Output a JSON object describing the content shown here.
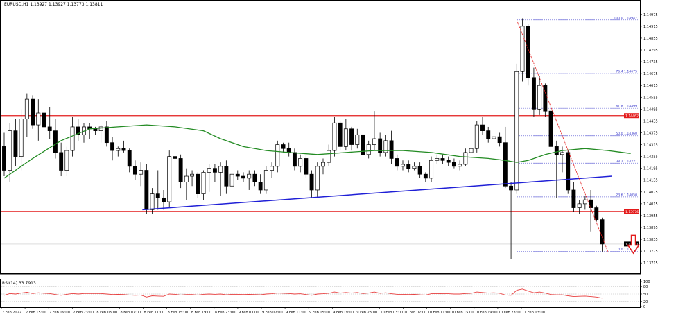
{
  "chart_data": {
    "type": "candlestick",
    "symbol_header": "EURUSD,H1  1.13927 1.13927 1.13773 1.13811",
    "price_axis": {
      "range": [
        1.1367,
        1.1502
      ],
      "ticks": [
        "1.14975",
        "1.14915",
        "1.14855",
        "1.14795",
        "1.14735",
        "1.14675",
        "1.14615",
        "1.14555",
        "1.14495",
        "1.14435",
        "1.14375",
        "1.14315",
        "1.14255",
        "1.14195",
        "1.14135",
        "1.14075",
        "1.14015",
        "1.13955",
        "1.13895",
        "1.13835",
        "1.13775",
        "1.13715"
      ],
      "current_price_label": "1.13811",
      "current_price": 1.13811
    },
    "time_axis": {
      "labels": [
        "7 Feb 2022",
        "7 Feb 15:00",
        "7 Feb 19:00",
        "7 Feb 23:00",
        "8 Feb 03:00",
        "8 Feb 07:00",
        "8 Feb 11:00",
        "8 Feb 15:00",
        "8 Feb 19:00",
        "8 Feb 23:00",
        "9 Feb 03:00",
        "9 Feb 07:00",
        "9 Feb 11:00",
        "9 Feb 15:00",
        "9 Feb 19:00",
        "9 Feb 23:00",
        "10 Feb 03:00",
        "10 Feb 07:00",
        "10 Feb 11:00",
        "10 Feb 15:00",
        "10 Feb 19:00",
        "10 Feb 23:00",
        "11 Feb 03:00"
      ]
    },
    "candles": [
      {
        "o": 1.14305,
        "h": 1.14375,
        "l": 1.14155,
        "c": 1.14185
      },
      {
        "o": 1.14185,
        "h": 1.14425,
        "l": 1.14125,
        "c": 1.14385
      },
      {
        "o": 1.14385,
        "h": 1.14445,
        "l": 1.14205,
        "c": 1.14255
      },
      {
        "o": 1.14255,
        "h": 1.14495,
        "l": 1.14185,
        "c": 1.14445
      },
      {
        "o": 1.14445,
        "h": 1.14575,
        "l": 1.14355,
        "c": 1.14545
      },
      {
        "o": 1.14545,
        "h": 1.14565,
        "l": 1.14395,
        "c": 1.14415
      },
      {
        "o": 1.14415,
        "h": 1.14545,
        "l": 1.14335,
        "c": 1.14475
      },
      {
        "o": 1.14475,
        "h": 1.14545,
        "l": 1.14385,
        "c": 1.14405
      },
      {
        "o": 1.14405,
        "h": 1.14505,
        "l": 1.14345,
        "c": 1.14385
      },
      {
        "o": 1.14385,
        "h": 1.14445,
        "l": 1.14245,
        "c": 1.14275
      },
      {
        "o": 1.14275,
        "h": 1.14325,
        "l": 1.14155,
        "c": 1.14185
      },
      {
        "o": 1.14185,
        "h": 1.14305,
        "l": 1.14155,
        "c": 1.14285
      },
      {
        "o": 1.14285,
        "h": 1.14455,
        "l": 1.14255,
        "c": 1.14405
      },
      {
        "o": 1.14405,
        "h": 1.14445,
        "l": 1.14335,
        "c": 1.14365
      },
      {
        "o": 1.14365,
        "h": 1.14425,
        "l": 1.14325,
        "c": 1.14405
      },
      {
        "o": 1.14405,
        "h": 1.14425,
        "l": 1.14345,
        "c": 1.14395
      },
      {
        "o": 1.14395,
        "h": 1.14405,
        "l": 1.14365,
        "c": 1.14385
      },
      {
        "o": 1.14385,
        "h": 1.14415,
        "l": 1.14325,
        "c": 1.14405
      },
      {
        "o": 1.14405,
        "h": 1.14435,
        "l": 1.14305,
        "c": 1.14325
      },
      {
        "o": 1.14325,
        "h": 1.14355,
        "l": 1.14235,
        "c": 1.14285
      },
      {
        "o": 1.14285,
        "h": 1.14305,
        "l": 1.14255,
        "c": 1.14295
      },
      {
        "o": 1.14295,
        "h": 1.14335,
        "l": 1.14275,
        "c": 1.14285
      },
      {
        "o": 1.14285,
        "h": 1.14295,
        "l": 1.14175,
        "c": 1.14205
      },
      {
        "o": 1.14205,
        "h": 1.14235,
        "l": 1.14135,
        "c": 1.14165
      },
      {
        "o": 1.14165,
        "h": 1.14225,
        "l": 1.14105,
        "c": 1.14185
      },
      {
        "o": 1.14185,
        "h": 1.14215,
        "l": 1.13965,
        "c": 1.13985
      },
      {
        "o": 1.13985,
        "h": 1.14095,
        "l": 1.13965,
        "c": 1.14065
      },
      {
        "o": 1.14065,
        "h": 1.14185,
        "l": 1.13985,
        "c": 1.14045
      },
      {
        "o": 1.14045,
        "h": 1.14085,
        "l": 1.13985,
        "c": 1.14025
      },
      {
        "o": 1.14025,
        "h": 1.14285,
        "l": 1.13995,
        "c": 1.14255
      },
      {
        "o": 1.14255,
        "h": 1.14275,
        "l": 1.14185,
        "c": 1.14245
      },
      {
        "o": 1.14245,
        "h": 1.14265,
        "l": 1.14095,
        "c": 1.14125
      },
      {
        "o": 1.14125,
        "h": 1.14195,
        "l": 1.14035,
        "c": 1.14155
      },
      {
        "o": 1.14155,
        "h": 1.14185,
        "l": 1.14105,
        "c": 1.14165
      },
      {
        "o": 1.14165,
        "h": 1.14175,
        "l": 1.14045,
        "c": 1.14065
      },
      {
        "o": 1.14065,
        "h": 1.14185,
        "l": 1.14035,
        "c": 1.14175
      },
      {
        "o": 1.14175,
        "h": 1.14215,
        "l": 1.14075,
        "c": 1.14195
      },
      {
        "o": 1.14195,
        "h": 1.14215,
        "l": 1.14125,
        "c": 1.14175
      },
      {
        "o": 1.14175,
        "h": 1.14225,
        "l": 1.14055,
        "c": 1.14205
      },
      {
        "o": 1.14205,
        "h": 1.14235,
        "l": 1.14065,
        "c": 1.14105
      },
      {
        "o": 1.14105,
        "h": 1.14195,
        "l": 1.14075,
        "c": 1.14165
      },
      {
        "o": 1.14165,
        "h": 1.14185,
        "l": 1.14135,
        "c": 1.14155
      },
      {
        "o": 1.14155,
        "h": 1.14175,
        "l": 1.14125,
        "c": 1.14145
      },
      {
        "o": 1.14145,
        "h": 1.14185,
        "l": 1.14085,
        "c": 1.14165
      },
      {
        "o": 1.14165,
        "h": 1.14185,
        "l": 1.14105,
        "c": 1.14125
      },
      {
        "o": 1.14125,
        "h": 1.14165,
        "l": 1.14065,
        "c": 1.14085
      },
      {
        "o": 1.14085,
        "h": 1.14205,
        "l": 1.14065,
        "c": 1.14185
      },
      {
        "o": 1.14185,
        "h": 1.14225,
        "l": 1.14145,
        "c": 1.14205
      },
      {
        "o": 1.14205,
        "h": 1.14335,
        "l": 1.14175,
        "c": 1.14315
      },
      {
        "o": 1.14315,
        "h": 1.14325,
        "l": 1.14275,
        "c": 1.14295
      },
      {
        "o": 1.14295,
        "h": 1.14325,
        "l": 1.14255,
        "c": 1.14275
      },
      {
        "o": 1.14275,
        "h": 1.14295,
        "l": 1.14185,
        "c": 1.14205
      },
      {
        "o": 1.14205,
        "h": 1.14265,
        "l": 1.14175,
        "c": 1.14245
      },
      {
        "o": 1.14245,
        "h": 1.14265,
        "l": 1.14145,
        "c": 1.14165
      },
      {
        "o": 1.14165,
        "h": 1.14185,
        "l": 1.14045,
        "c": 1.14085
      },
      {
        "o": 1.14085,
        "h": 1.14225,
        "l": 1.14045,
        "c": 1.14205
      },
      {
        "o": 1.14205,
        "h": 1.14245,
        "l": 1.14165,
        "c": 1.14225
      },
      {
        "o": 1.14225,
        "h": 1.14315,
        "l": 1.14205,
        "c": 1.14285
      },
      {
        "o": 1.14285,
        "h": 1.14455,
        "l": 1.14255,
        "c": 1.14425
      },
      {
        "o": 1.14425,
        "h": 1.14435,
        "l": 1.14285,
        "c": 1.14305
      },
      {
        "o": 1.14305,
        "h": 1.14445,
        "l": 1.14285,
        "c": 1.14395
      },
      {
        "o": 1.14395,
        "h": 1.14405,
        "l": 1.14285,
        "c": 1.14315
      },
      {
        "o": 1.14315,
        "h": 1.14395,
        "l": 1.14295,
        "c": 1.14365
      },
      {
        "o": 1.14365,
        "h": 1.14385,
        "l": 1.14245,
        "c": 1.14265
      },
      {
        "o": 1.14265,
        "h": 1.14335,
        "l": 1.14245,
        "c": 1.14315
      },
      {
        "o": 1.14315,
        "h": 1.14485,
        "l": 1.14285,
        "c": 1.14345
      },
      {
        "o": 1.14345,
        "h": 1.14375,
        "l": 1.14255,
        "c": 1.14275
      },
      {
        "o": 1.14275,
        "h": 1.14365,
        "l": 1.14255,
        "c": 1.14335
      },
      {
        "o": 1.14335,
        "h": 1.14385,
        "l": 1.14215,
        "c": 1.14245
      },
      {
        "o": 1.14245,
        "h": 1.14265,
        "l": 1.14185,
        "c": 1.14205
      },
      {
        "o": 1.14205,
        "h": 1.14235,
        "l": 1.14185,
        "c": 1.14215
      },
      {
        "o": 1.14215,
        "h": 1.14235,
        "l": 1.14175,
        "c": 1.14195
      },
      {
        "o": 1.14195,
        "h": 1.14225,
        "l": 1.14185,
        "c": 1.14205
      },
      {
        "o": 1.14205,
        "h": 1.14225,
        "l": 1.14145,
        "c": 1.14165
      },
      {
        "o": 1.14165,
        "h": 1.14175,
        "l": 1.14125,
        "c": 1.14145
      },
      {
        "o": 1.14145,
        "h": 1.14255,
        "l": 1.14125,
        "c": 1.14235
      },
      {
        "o": 1.14235,
        "h": 1.14265,
        "l": 1.14215,
        "c": 1.14245
      },
      {
        "o": 1.14245,
        "h": 1.14265,
        "l": 1.14215,
        "c": 1.14235
      },
      {
        "o": 1.14235,
        "h": 1.14255,
        "l": 1.14205,
        "c": 1.14225
      },
      {
        "o": 1.14225,
        "h": 1.14245,
        "l": 1.14195,
        "c": 1.14205
      },
      {
        "o": 1.14205,
        "h": 1.14235,
        "l": 1.14185,
        "c": 1.14215
      },
      {
        "o": 1.14215,
        "h": 1.14295,
        "l": 1.14205,
        "c": 1.14275
      },
      {
        "o": 1.14275,
        "h": 1.14315,
        "l": 1.14255,
        "c": 1.14295
      },
      {
        "o": 1.14295,
        "h": 1.14435,
        "l": 1.14275,
        "c": 1.14415
      },
      {
        "o": 1.14415,
        "h": 1.14455,
        "l": 1.14365,
        "c": 1.14385
      },
      {
        "o": 1.14385,
        "h": 1.14405,
        "l": 1.14325,
        "c": 1.14345
      },
      {
        "o": 1.14345,
        "h": 1.14385,
        "l": 1.14315,
        "c": 1.14355
      },
      {
        "o": 1.14355,
        "h": 1.14375,
        "l": 1.14305,
        "c": 1.14325
      },
      {
        "o": 1.14325,
        "h": 1.14405,
        "l": 1.14095,
        "c": 1.14105
      },
      {
        "o": 1.14105,
        "h": 1.14125,
        "l": 1.13735,
        "c": 1.14085
      },
      {
        "o": 1.14085,
        "h": 1.14725,
        "l": 1.14065,
        "c": 1.14685
      },
      {
        "o": 1.14685,
        "h": 1.14955,
        "l": 1.14635,
        "c": 1.14915
      },
      {
        "o": 1.14915,
        "h": 1.14925,
        "l": 1.14615,
        "c": 1.14655
      },
      {
        "o": 1.14655,
        "h": 1.14705,
        "l": 1.14455,
        "c": 1.14495
      },
      {
        "o": 1.14495,
        "h": 1.14665,
        "l": 1.14465,
        "c": 1.14615
      },
      {
        "o": 1.14615,
        "h": 1.14625,
        "l": 1.14455,
        "c": 1.14485
      },
      {
        "o": 1.14485,
        "h": 1.14495,
        "l": 1.14275,
        "c": 1.14305
      },
      {
        "o": 1.14305,
        "h": 1.14335,
        "l": 1.14045,
        "c": 1.14265
      },
      {
        "o": 1.14265,
        "h": 1.14305,
        "l": 1.14175,
        "c": 1.14275
      },
      {
        "o": 1.14275,
        "h": 1.14285,
        "l": 1.14065,
        "c": 1.14085
      },
      {
        "o": 1.14085,
        "h": 1.14125,
        "l": 1.13975,
        "c": 1.13995
      },
      {
        "o": 1.13995,
        "h": 1.14035,
        "l": 1.13965,
        "c": 1.14015
      },
      {
        "o": 1.14015,
        "h": 1.14055,
        "l": 1.13985,
        "c": 1.14035
      },
      {
        "o": 1.14035,
        "h": 1.14085,
        "l": 1.13875,
        "c": 1.13995
      },
      {
        "o": 1.13995,
        "h": 1.14005,
        "l": 1.13925,
        "c": 1.13935
      },
      {
        "o": 1.13935,
        "h": 1.13945,
        "l": 1.13773,
        "c": 1.13811
      }
    ],
    "moving_average": {
      "color": "#238b23",
      "points": [
        [
          0,
          1.14145
        ],
        [
          5,
          1.14245
        ],
        [
          10,
          1.14335
        ],
        [
          15,
          1.14395
        ],
        [
          20,
          1.14405
        ],
        [
          25,
          1.14415
        ],
        [
          30,
          1.14405
        ],
        [
          35,
          1.14385
        ],
        [
          38,
          1.14345
        ],
        [
          42,
          1.14305
        ],
        [
          46,
          1.14285
        ],
        [
          50,
          1.14275
        ],
        [
          55,
          1.14265
        ],
        [
          60,
          1.14275
        ],
        [
          65,
          1.14285
        ],
        [
          70,
          1.14285
        ],
        [
          75,
          1.14275
        ],
        [
          80,
          1.14255
        ],
        [
          85,
          1.14245
        ],
        [
          88,
          1.14235
        ],
        [
          90,
          1.14225
        ],
        [
          92,
          1.14235
        ],
        [
          95,
          1.14265
        ],
        [
          98,
          1.14285
        ],
        [
          102,
          1.14295
        ],
        [
          106,
          1.14285
        ],
        [
          110,
          1.1427
        ]
      ]
    },
    "support_trendline": {
      "color": "#1f1fd6",
      "from": [
        25,
        1.13985
      ],
      "to": [
        106,
        1.14155
      ]
    },
    "horizontal_levels": [
      {
        "price": 1.14462,
        "label": "1.14462",
        "color": "#e31b1b"
      },
      {
        "price": 1.13976,
        "label": "1.13976",
        "color": "#e31b1b"
      }
    ],
    "fibonacci": {
      "color": "#3b3bcc",
      "start_index": 90,
      "levels": [
        {
          "price": 1.14947,
          "label": "100.0  1.14947"
        },
        {
          "price": 1.14675,
          "label": "76.4  1.14675"
        },
        {
          "price": 1.14499,
          "label": "61.8  1.14499"
        },
        {
          "price": 1.1436,
          "label": "50.0  1.14360"
        },
        {
          "price": 1.14221,
          "label": "38.2  1.14221"
        },
        {
          "price": 1.1405,
          "label": "23.6  1.14050"
        },
        {
          "price": 1.13773,
          "label": "0.0  1.13773"
        }
      ],
      "diagonal": {
        "from": [
          90,
          1.14947
        ],
        "to": [
          106,
          1.13773
        ]
      }
    },
    "arrow": {
      "direction": "down",
      "color": "#e31b1b",
      "at_index": 110,
      "top_price": 1.13855,
      "bottom_price": 1.13765
    },
    "rsi": {
      "label": "RSI(14) 33.7913",
      "range": [
        0,
        100
      ],
      "ticks": [
        "100",
        "80",
        "50",
        "20",
        "0"
      ],
      "color": "#e84040",
      "values": [
        45,
        52,
        50,
        54,
        57,
        52,
        55,
        53,
        52,
        48,
        45,
        49,
        52,
        50,
        52,
        52,
        52,
        52,
        50,
        48,
        49,
        48,
        46,
        45,
        46,
        38,
        43,
        42,
        41,
        50,
        49,
        46,
        48,
        48,
        46,
        49,
        50,
        49,
        50,
        47,
        49,
        49,
        48,
        49,
        48,
        47,
        50,
        51,
        54,
        53,
        52,
        50,
        51,
        48,
        45,
        50,
        51,
        53,
        58,
        54,
        56,
        54,
        56,
        52,
        54,
        58,
        53,
        55,
        51,
        49,
        49,
        48,
        49,
        47,
        46,
        51,
        52,
        51,
        51,
        50,
        50,
        52,
        53,
        58,
        56,
        54,
        55,
        53,
        46,
        45,
        65,
        70,
        62,
        55,
        58,
        54,
        48,
        47,
        47,
        43,
        40,
        41,
        42,
        40,
        38,
        34
      ]
    }
  }
}
